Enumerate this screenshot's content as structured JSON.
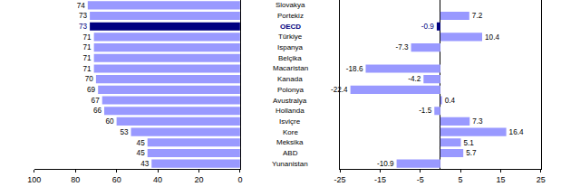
{
  "chart_data": [
    {
      "type": "bar",
      "orientation": "horizontal",
      "data_labels": true,
      "tick_labels": "x",
      "categories": [
        "Slovakya",
        "Portekiz",
        "OECD",
        "Türkiye",
        "Ispanya",
        "Belçika",
        "Macaristan",
        "Kanada",
        "Polonya",
        "Avustralya",
        "Hollanda",
        "Isviçre",
        "Kore",
        "Meksika",
        "ABD",
        "Yunanistan"
      ],
      "values": [
        74,
        73,
        73,
        71,
        71,
        71,
        71,
        70,
        69,
        67,
        66,
        60,
        53,
        45,
        45,
        43
      ],
      "colors": [
        "#9999ff",
        "#9999ff",
        "#000080",
        "#9999ff",
        "#9999ff",
        "#9999ff",
        "#9999ff",
        "#9999ff",
        "#9999ff",
        "#9999ff",
        "#9999ff",
        "#9999ff",
        "#9999ff",
        "#9999ff",
        "#9999ff",
        "#9999ff"
      ],
      "xlim": [
        100,
        0
      ],
      "xticks": [
        100,
        80,
        60,
        40,
        20,
        0
      ]
    },
    {
      "type": "bar",
      "orientation": "horizontal",
      "data_labels": true,
      "categories": [
        "Slovakya",
        "Portekiz",
        "OECD",
        "Türkiye",
        "Ispanya",
        "Belçika",
        "Macaristan",
        "Kanada",
        "Polonya",
        "Avustralya",
        "Hollanda",
        "Isviçre",
        "Kore",
        "Meksika",
        "ABD",
        "Yunanistan"
      ],
      "values": [
        null,
        7.2,
        -0.9,
        10.4,
        -7.3,
        null,
        -18.6,
        -4.2,
        -22.4,
        0.4,
        -1.5,
        7.3,
        16.4,
        5.1,
        5.7,
        -10.9
      ],
      "colors": [
        "#9999ff",
        "#9999ff",
        "#000080",
        "#9999ff",
        "#9999ff",
        "#9999ff",
        "#9999ff",
        "#9999ff",
        "#9999ff",
        "#9999ff",
        "#9999ff",
        "#9999ff",
        "#9999ff",
        "#9999ff",
        "#9999ff",
        "#9999ff"
      ],
      "xlim": [
        -25,
        25
      ],
      "xticks": [
        -25,
        -15,
        -5,
        5,
        15,
        25
      ]
    }
  ]
}
